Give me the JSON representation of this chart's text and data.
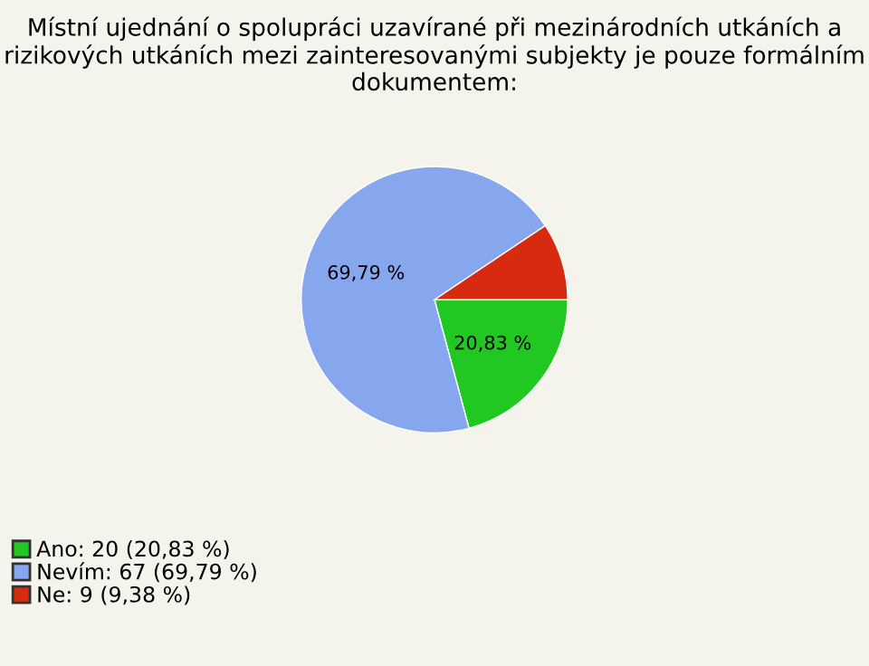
{
  "chart_data": {
    "type": "pie",
    "title": "Místní ujednání o spolupráci uzavírané při mezinárodních utkáních a rizikových utkáních mezi zainteresovanými subjekty je pouze formálním dokumentem:",
    "categories": [
      "Ano: 20 (20,83 %)",
      "Nevím: 67 (69,79 %)",
      "Ne: 9 (9,38 %)"
    ],
    "values": [
      20.83,
      69.79,
      9.38
    ],
    "colors": [
      "#22c822",
      "#86a6ee",
      "#d82a0e"
    ],
    "value_labels": [
      "20,83 %",
      "69,79 %",
      null
    ],
    "legend": "bottom left"
  }
}
